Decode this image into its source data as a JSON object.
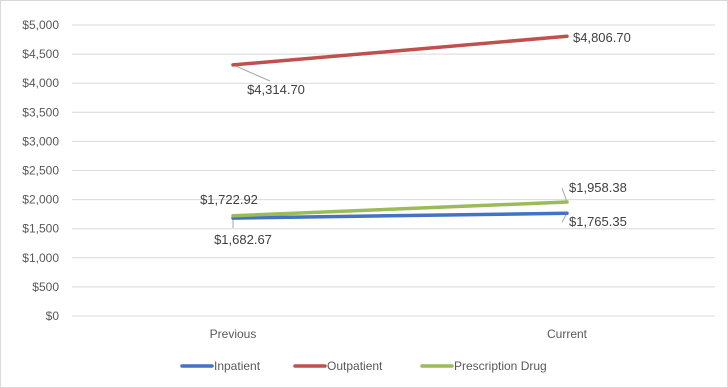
{
  "chart_data": {
    "type": "line",
    "title": "",
    "xlabel": "",
    "ylabel": "",
    "categories": [
      "Previous",
      "Current"
    ],
    "ylim": [
      0,
      5000
    ],
    "yticks": [
      0,
      500,
      1000,
      1500,
      2000,
      2500,
      3000,
      3500,
      4000,
      4500,
      5000
    ],
    "ytick_labels": [
      "$0",
      "$500",
      "$1,000",
      "$1,500",
      "$2,000",
      "$2,500",
      "$3,000",
      "$3,500",
      "$4,000",
      "$4,500",
      "$5,000"
    ],
    "grid": true,
    "legend": "bottom",
    "series": [
      {
        "name": "Inpatient",
        "color": "#4472c4",
        "values": [
          1682.67,
          1765.35
        ],
        "labels": [
          "$1,682.67",
          "$1,765.35"
        ]
      },
      {
        "name": "Outpatient",
        "color": "#c0504d",
        "values": [
          4314.7,
          4806.7
        ],
        "labels": [
          "$4,314.70",
          "$4,806.70"
        ]
      },
      {
        "name": "Prescription Drug",
        "color": "#9bbb59",
        "values": [
          1722.92,
          1958.38
        ],
        "labels": [
          "$1,722.92",
          "$1,958.38"
        ]
      }
    ]
  }
}
